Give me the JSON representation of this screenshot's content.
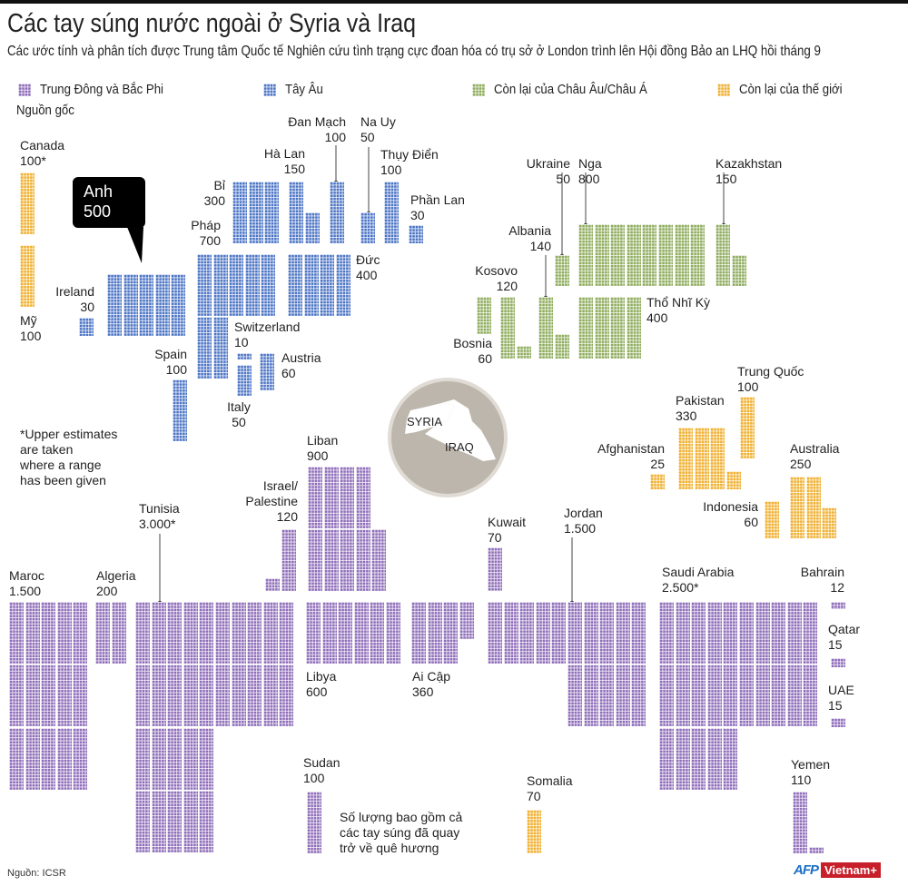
{
  "header": {
    "title": "Các tay súng nước ngoài ở Syria và Iraq",
    "subtitle": "Các ước tính và phân tích được Trung tâm Quốc tế Nghiên cứu tình trạng cực đoan hóa có trụ sở ở London trình lên Hội đồng Bảo an LHQ hồi tháng 9"
  },
  "legend": {
    "title": "Nguồn gốc",
    "items": [
      {
        "id": "mena",
        "label": "Trung Đông và Bắc Phi",
        "color": "#8d6bb9"
      },
      {
        "id": "west",
        "label": "Tây Âu",
        "color": "#4a73c5"
      },
      {
        "id": "euas",
        "label": "Còn lại của Châu Âu/Châu Á",
        "color": "#8dab5b"
      },
      {
        "id": "rest",
        "label": "Còn lại của thế giới",
        "color": "#f0ae2c"
      }
    ]
  },
  "map": {
    "syria": "SYRIA",
    "iraq": "IRAQ"
  },
  "notes": {
    "upper_estimates": "*Upper estimates\nare taken\nwhere a range\nhas been given",
    "returned": "Số lượng bao gồm cả\ncác tay súng đã quay\ntrở về quê hương"
  },
  "footer": {
    "source": "Nguồn: ICSR",
    "logo_afp": "AFP",
    "logo_vietnam": "Vietnam+"
  },
  "chart_data": {
    "type": "pictograph",
    "unit_note": "1 small square = 10 fighters",
    "items": [
      {
        "id": "canada",
        "name": "Canada",
        "value_label": "100*",
        "value": 100,
        "region": "rest"
      },
      {
        "id": "my",
        "name": "Mỹ",
        "value_label": "100",
        "value": 100,
        "region": "rest"
      },
      {
        "id": "anh",
        "name": "Anh",
        "value_label": "500",
        "value": 500,
        "region": "west"
      },
      {
        "id": "ireland",
        "name": "Ireland",
        "value_label": "30",
        "value": 30,
        "region": "west"
      },
      {
        "id": "bi",
        "name": "Bỉ",
        "value_label": "300",
        "value": 300,
        "region": "west"
      },
      {
        "id": "halan",
        "name": "Hà Lan",
        "value_label": "150",
        "value": 150,
        "region": "west"
      },
      {
        "id": "danmach",
        "name": "Đan Mạch",
        "value_label": "100",
        "value": 100,
        "region": "west"
      },
      {
        "id": "nauy",
        "name": "Na Uy",
        "value_label": "50",
        "value": 50,
        "region": "west"
      },
      {
        "id": "thuydien",
        "name": "Thụy Điển",
        "value_label": "100",
        "value": 100,
        "region": "west"
      },
      {
        "id": "phanlan",
        "name": "Phần Lan",
        "value_label": "30",
        "value": 30,
        "region": "west"
      },
      {
        "id": "phap",
        "name": "Pháp",
        "value_label": "700",
        "value": 700,
        "region": "west"
      },
      {
        "id": "duc",
        "name": "Đức",
        "value_label": "400",
        "value": 400,
        "region": "west"
      },
      {
        "id": "switzerland",
        "name": "Switzerland",
        "value_label": "10",
        "value": 10,
        "region": "west"
      },
      {
        "id": "italy",
        "name": "Italy",
        "value_label": "50",
        "value": 50,
        "region": "west"
      },
      {
        "id": "austria",
        "name": "Austria",
        "value_label": "60",
        "value": 60,
        "region": "west"
      },
      {
        "id": "spain",
        "name": "Spain",
        "value_label": "100",
        "value": 100,
        "region": "west"
      },
      {
        "id": "ukraine",
        "name": "Ukraine",
        "value_label": "50",
        "value": 50,
        "region": "euas"
      },
      {
        "id": "nga",
        "name": "Nga",
        "value_label": "800",
        "value": 800,
        "region": "euas"
      },
      {
        "id": "kazakhstan",
        "name": "Kazakhstan",
        "value_label": "150",
        "value": 150,
        "region": "euas"
      },
      {
        "id": "albania",
        "name": "Albania",
        "value_label": "140",
        "value": 140,
        "region": "euas"
      },
      {
        "id": "kosovo",
        "name": "Kosovo",
        "value_label": "120",
        "value": 120,
        "region": "euas"
      },
      {
        "id": "bosnia",
        "name": "Bosnia",
        "value_label": "60",
        "value": 60,
        "region": "euas"
      },
      {
        "id": "thonhiky",
        "name": "Thổ Nhĩ Kỳ",
        "value_label": "400",
        "value": 400,
        "region": "euas"
      },
      {
        "id": "trungquoc",
        "name": "Trung Quốc",
        "value_label": "100",
        "value": 100,
        "region": "rest"
      },
      {
        "id": "pakistan",
        "name": "Pakistan",
        "value_label": "330",
        "value": 330,
        "region": "rest"
      },
      {
        "id": "afghanistan",
        "name": "Afghanistan",
        "value_label": "25",
        "value": 25,
        "region": "rest"
      },
      {
        "id": "australia",
        "name": "Australia",
        "value_label": "250",
        "value": 250,
        "region": "rest"
      },
      {
        "id": "indonesia",
        "name": "Indonesia",
        "value_label": "60",
        "value": 60,
        "region": "rest"
      },
      {
        "id": "liban",
        "name": "Liban",
        "value_label": "900",
        "value": 900,
        "region": "mena"
      },
      {
        "id": "israel",
        "name": "Israel/\nPalestine",
        "value_label": "120",
        "value": 120,
        "region": "mena"
      },
      {
        "id": "tunisia",
        "name": "Tunisia",
        "value_label": "3.000*",
        "value": 3000,
        "region": "mena"
      },
      {
        "id": "maroc",
        "name": "Maroc",
        "value_label": "1.500",
        "value": 1500,
        "region": "mena"
      },
      {
        "id": "algeria",
        "name": "Algeria",
        "value_label": "200",
        "value": 200,
        "region": "mena"
      },
      {
        "id": "libya",
        "name": "Libya",
        "value_label": "600",
        "value": 600,
        "region": "mena"
      },
      {
        "id": "aicap",
        "name": "Ai Cập",
        "value_label": "360",
        "value": 360,
        "region": "mena"
      },
      {
        "id": "kuwait",
        "name": "Kuwait",
        "value_label": "70",
        "value": 70,
        "region": "mena"
      },
      {
        "id": "jordan",
        "name": "Jordan",
        "value_label": "1.500",
        "value": 1500,
        "region": "mena"
      },
      {
        "id": "saudi",
        "name": "Saudi Arabia",
        "value_label": "2.500*",
        "value": 2500,
        "region": "mena"
      },
      {
        "id": "bahrain",
        "name": "Bahrain",
        "value_label": "12",
        "value": 12,
        "region": "mena"
      },
      {
        "id": "qatar",
        "name": "Qatar",
        "value_label": "15",
        "value": 15,
        "region": "mena"
      },
      {
        "id": "uae",
        "name": "UAE",
        "value_label": "15",
        "value": 15,
        "region": "mena"
      },
      {
        "id": "yemen",
        "name": "Yemen",
        "value_label": "110",
        "value": 110,
        "region": "mena"
      },
      {
        "id": "sudan",
        "name": "Sudan",
        "value_label": "100",
        "value": 100,
        "region": "mena"
      },
      {
        "id": "somalia",
        "name": "Somalia",
        "value_label": "70",
        "value": 70,
        "region": "rest"
      }
    ]
  }
}
